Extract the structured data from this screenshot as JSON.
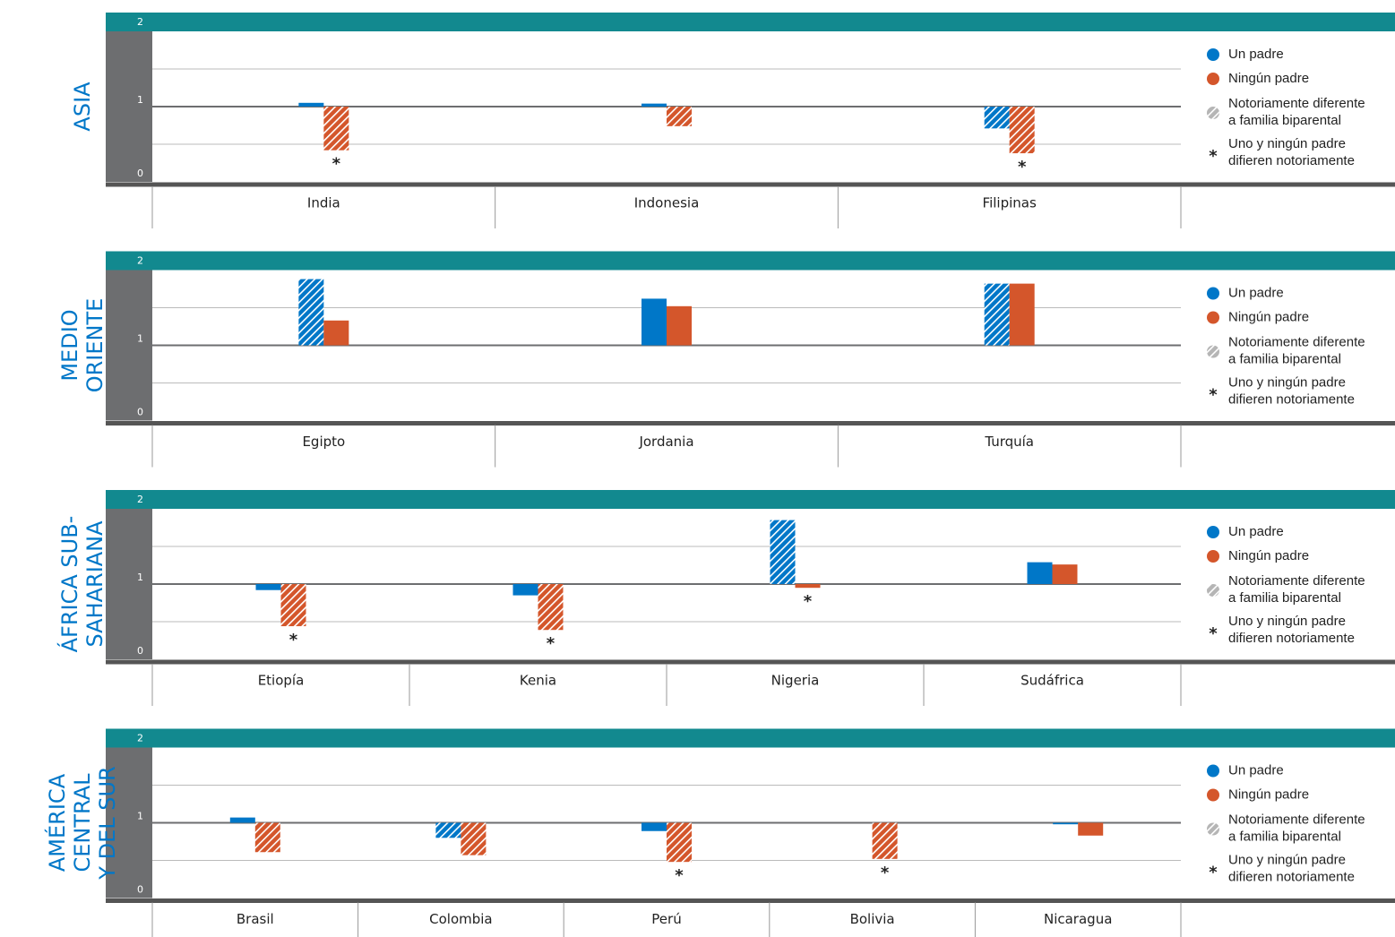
{
  "chart_data": [
    {
      "type": "bar",
      "region": [
        "ASIA"
      ],
      "categories": [
        "India",
        "Indonesia",
        "Filipinas"
      ],
      "series": [
        {
          "name": "Un padre",
          "color": "#0077c8",
          "values": [
            1.05,
            1.04,
            0.71
          ],
          "hatched": [
            false,
            false,
            true
          ]
        },
        {
          "name": "Ningún padre",
          "color": "#d4562b",
          "values": [
            0.42,
            0.74,
            0.38
          ],
          "hatched": [
            true,
            true,
            true
          ]
        }
      ],
      "significant": [
        true,
        false,
        true
      ],
      "ylim": [
        0,
        2
      ],
      "yticks": [
        0,
        1,
        2
      ],
      "bar_base": 1,
      "hatch_legend": [
        "Notoriamente diferente",
        "a familia biparental"
      ],
      "significance_marker": "*",
      "significance_legend": [
        "Uno y ningún padre",
        "difieren notoriamente"
      ]
    },
    {
      "type": "bar",
      "region": [
        "MEDIO",
        "ORIENTE"
      ],
      "categories": [
        "Egipto",
        "Jordania",
        "Turquía"
      ],
      "series": [
        {
          "name": "Un padre",
          "color": "#0077c8",
          "values": [
            1.88,
            1.62,
            1.82
          ],
          "hatched": [
            true,
            false,
            true
          ]
        },
        {
          "name": "Ningún padre",
          "color": "#d4562b",
          "values": [
            1.33,
            1.52,
            1.82
          ],
          "hatched": [
            false,
            false,
            false
          ]
        }
      ],
      "significant": [
        false,
        false,
        false
      ],
      "ylim": [
        0,
        2
      ],
      "yticks": [
        0,
        1,
        2
      ],
      "bar_base": 1,
      "hatch_legend": [
        "Notoriamente diferente",
        "a familia biparental"
      ],
      "significance_marker": "*",
      "significance_legend": [
        "Uno y ningún padre",
        "difieren notoriamente"
      ]
    },
    {
      "type": "bar",
      "region": [
        "ÁFRICA SUB-",
        "SAHARIANA"
      ],
      "categories": [
        "Etiopía",
        "Kenia",
        "Nigeria",
        "Sudáfrica"
      ],
      "series": [
        {
          "name": "Un padre",
          "color": "#0077c8",
          "values": [
            0.92,
            0.85,
            1.85,
            1.29
          ],
          "hatched": [
            false,
            false,
            true,
            false
          ]
        },
        {
          "name": "Ningún padre",
          "color": "#d4562b",
          "values": [
            0.44,
            0.39,
            0.95,
            1.26
          ],
          "hatched": [
            true,
            true,
            false,
            false
          ]
        }
      ],
      "significant": [
        true,
        true,
        true,
        false
      ],
      "ylim": [
        0,
        2
      ],
      "yticks": [
        0,
        1,
        2
      ],
      "bar_base": 1,
      "hatch_legend": [
        "Notoriamente diferente",
        "a familia biparental"
      ],
      "significance_marker": "*",
      "significance_legend": [
        "Uno y ningún padre",
        "difieren notoriamente"
      ]
    },
    {
      "type": "bar",
      "region": [
        "AMÉRICA",
        "CENTRAL",
        "Y DEL SUR"
      ],
      "categories": [
        "Brasil",
        "Colombia",
        "Perú",
        "Bolivia",
        "Nicaragua"
      ],
      "series": [
        {
          "name": "Un padre",
          "color": "#0077c8",
          "values": [
            1.07,
            0.8,
            0.89,
            null,
            0.98
          ],
          "hatched": [
            false,
            true,
            false,
            false,
            false
          ]
        },
        {
          "name": "Ningún padre",
          "color": "#d4562b",
          "values": [
            0.61,
            0.57,
            0.48,
            0.52,
            0.83
          ],
          "hatched": [
            true,
            true,
            true,
            true,
            false
          ]
        }
      ],
      "significant": [
        false,
        false,
        true,
        true,
        false
      ],
      "ylim": [
        0,
        2
      ],
      "yticks": [
        0,
        1,
        2
      ],
      "bar_base": 1,
      "hatch_legend": [
        "Notoriamente diferente",
        "a familia biparental"
      ],
      "significance_marker": "*",
      "significance_legend": [
        "Uno y ningún padre",
        "difieren notoriamente"
      ]
    }
  ]
}
